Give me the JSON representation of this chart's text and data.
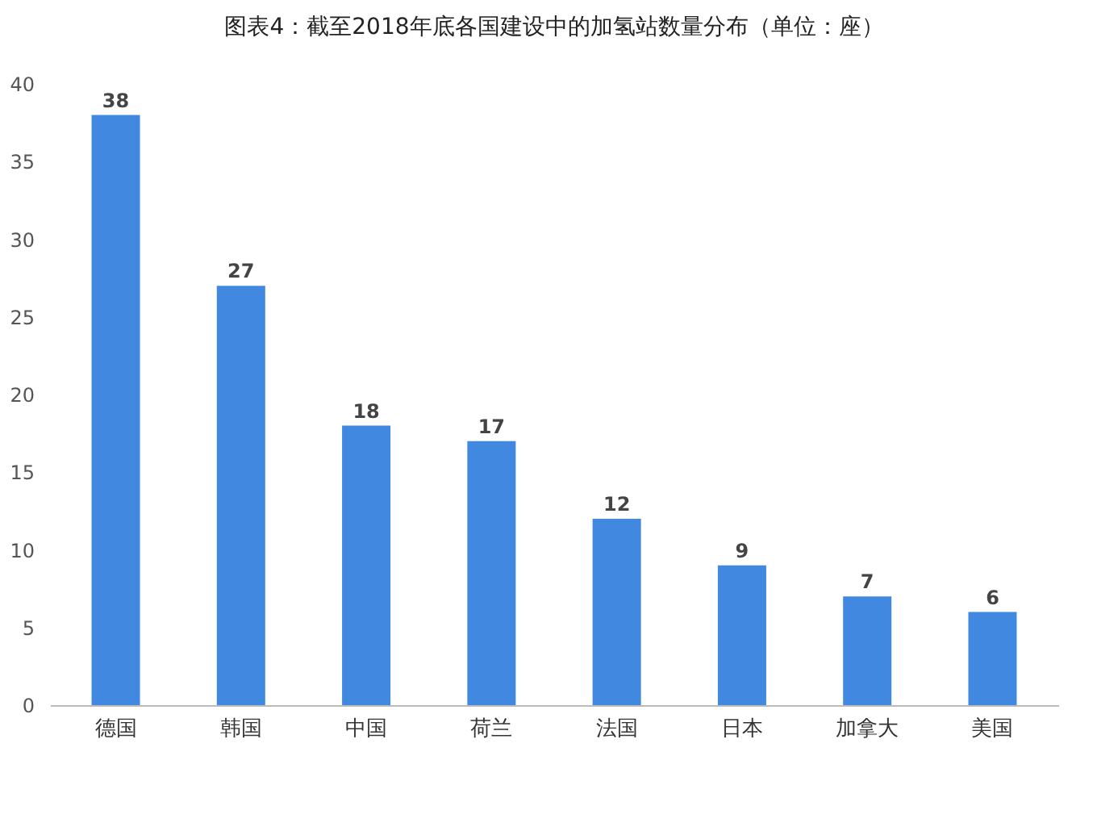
{
  "chart_data": {
    "type": "bar",
    "title": "图表4：截至2018年底各国建设中的加氢站数量分布（单位：座）",
    "categories": [
      "德国",
      "韩国",
      "中国",
      "荷兰",
      "法国",
      "日本",
      "加拿大",
      "美国"
    ],
    "values": [
      38,
      27,
      18,
      17,
      12,
      9,
      7,
      6
    ],
    "color": "#4189e0",
    "ylim": [
      0,
      40
    ],
    "yticks": [
      0,
      5,
      10,
      15,
      20,
      25,
      30,
      35,
      40
    ],
    "grid": false,
    "data_labels": true
  }
}
